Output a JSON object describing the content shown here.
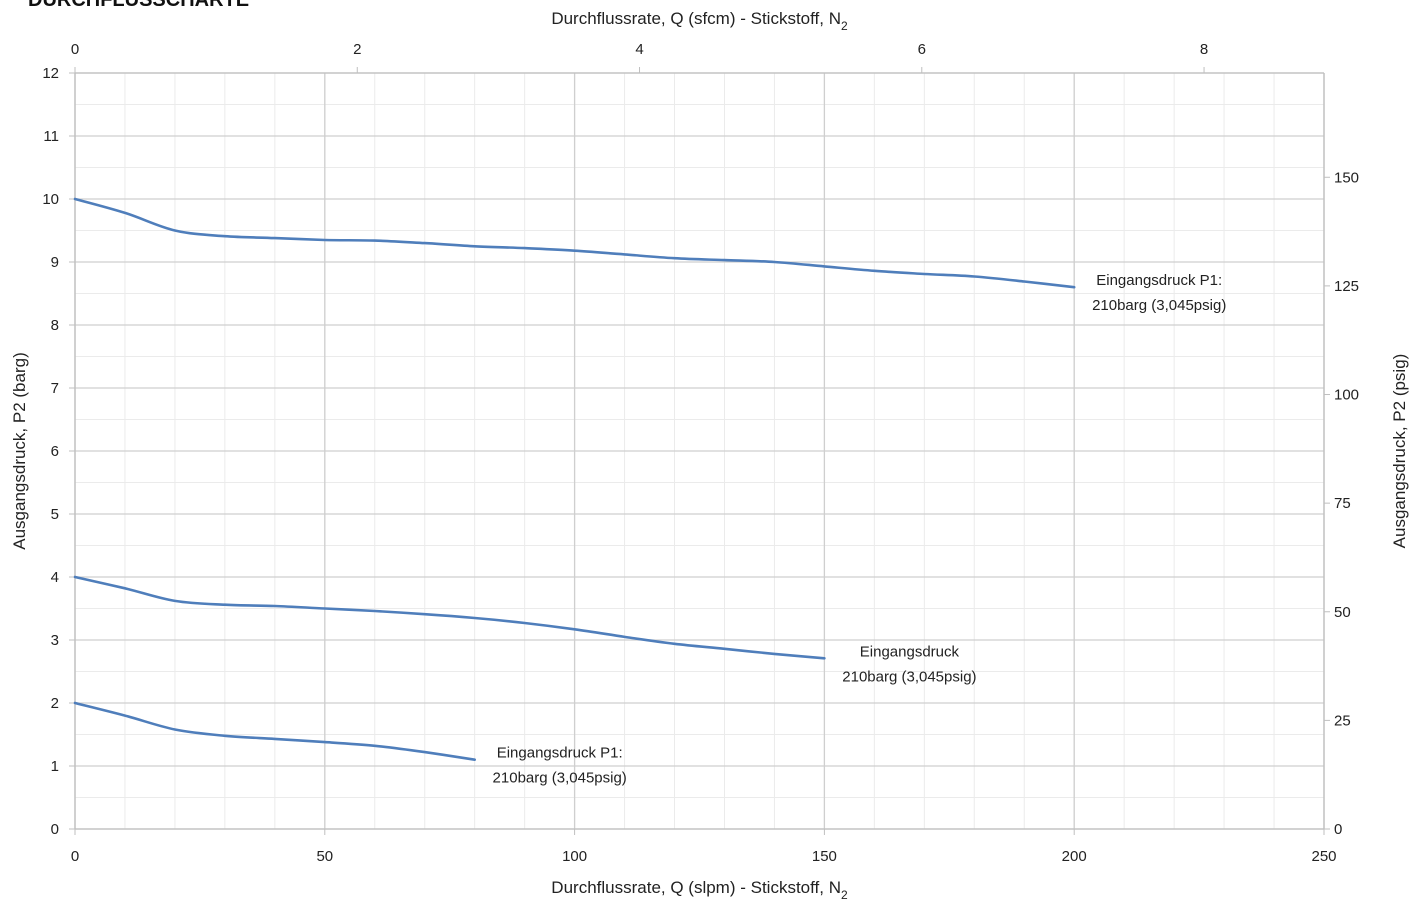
{
  "heading": "DURCHFLUSSCHARTE",
  "chart_data": {
    "type": "line",
    "xlabel_bottom_main": "Durchflussrate, Q (slpm) - Stickstoff, N",
    "xlabel_bottom_sub": "2",
    "xlabel_top_main": "Durchflussrate, Q (sfcm) - Stickstoff, N",
    "xlabel_top_sub": "2",
    "ylabel_left": "Ausgangsdruck, P2 (barg)",
    "ylabel_right": "Ausgangsdruck, P2 (psig)",
    "xlim": [
      0,
      250
    ],
    "ylim": [
      0,
      12
    ],
    "x2lim": [
      0,
      8.85
    ],
    "y2lim": [
      0,
      174
    ],
    "x_ticks": [
      0,
      50,
      100,
      150,
      200,
      250
    ],
    "y_ticks": [
      0,
      1,
      2,
      3,
      4,
      5,
      6,
      7,
      8,
      9,
      10,
      11,
      12
    ],
    "x2_ticks": [
      0,
      2,
      4,
      6,
      8
    ],
    "y2_ticks": [
      0,
      25,
      50,
      75,
      100,
      125,
      150
    ],
    "x_minor_step": 10,
    "y_minor_step": 0.5,
    "grid": true,
    "colors": {
      "series": "#4f7ebb",
      "major_grid": "#cfcfcf",
      "minor_grid": "#ebebeb",
      "axis": "#bfbfbf"
    },
    "series": [
      {
        "x": [
          0,
          10,
          20,
          30,
          40,
          50,
          60,
          70,
          80,
          90,
          100,
          110,
          120,
          130,
          140,
          150,
          160,
          170,
          180,
          190,
          200
        ],
        "values": [
          10.0,
          9.78,
          9.5,
          9.41,
          9.38,
          9.35,
          9.34,
          9.3,
          9.25,
          9.22,
          9.18,
          9.12,
          9.06,
          9.03,
          9.0,
          8.93,
          8.86,
          8.81,
          8.77,
          8.69,
          8.6
        ],
        "label_lines": [
          "Eingangsdruck P1:",
          "210barg (3,045psig)"
        ]
      },
      {
        "x": [
          0,
          10,
          20,
          30,
          40,
          50,
          60,
          70,
          80,
          90,
          100,
          110,
          120,
          130,
          140,
          150
        ],
        "values": [
          4.0,
          3.82,
          3.62,
          3.56,
          3.54,
          3.5,
          3.46,
          3.41,
          3.35,
          3.27,
          3.17,
          3.05,
          2.94,
          2.86,
          2.78,
          2.71
        ],
        "label_lines": [
          "Eingangsdruck",
          "210barg (3,045psig)"
        ]
      },
      {
        "x": [
          0,
          10,
          20,
          30,
          40,
          50,
          60,
          70,
          80
        ],
        "values": [
          2.0,
          1.8,
          1.58,
          1.48,
          1.43,
          1.38,
          1.32,
          1.22,
          1.1
        ],
        "label_lines": [
          "Eingangsdruck P1:",
          "210barg (3,045psig)"
        ]
      }
    ]
  }
}
